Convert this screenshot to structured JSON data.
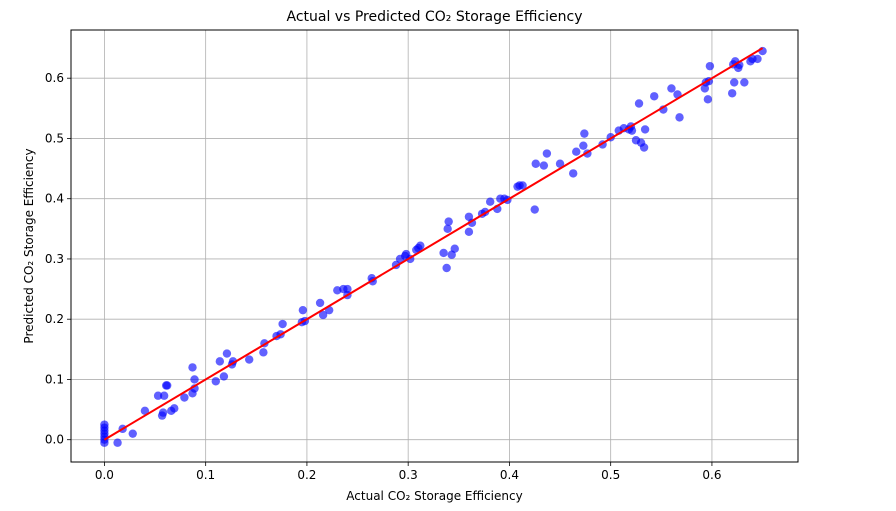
{
  "chart_data": {
    "type": "scatter",
    "title": "Actual vs Predicted CO₂ Storage Efficiency",
    "xlabel": "Actual CO₂ Storage Efficiency",
    "ylabel": "Predicted CO₂ Storage Efficiency",
    "xlim": [
      -0.033,
      0.685
    ],
    "ylim": [
      -0.037,
      0.68
    ],
    "x_ticks": [
      "0.0",
      "0.1",
      "0.2",
      "0.3",
      "0.4",
      "0.5",
      "0.6"
    ],
    "y_ticks": [
      "0.0",
      "0.1",
      "0.2",
      "0.3",
      "0.4",
      "0.5",
      "0.6"
    ],
    "grid": true,
    "point_color": "#0000ff",
    "line_color": "#ff0000",
    "reference_line": {
      "from": [
        0.0,
        0.0
      ],
      "to": [
        0.65,
        0.65
      ]
    },
    "points": [
      [
        0.0,
        0.025
      ],
      [
        0.0,
        0.02
      ],
      [
        0.0,
        0.015
      ],
      [
        0.0,
        0.01
      ],
      [
        0.0,
        0.005
      ],
      [
        0.0,
        0.0
      ],
      [
        0.0,
        -0.005
      ],
      [
        0.013,
        -0.005
      ],
      [
        0.018,
        0.018
      ],
      [
        0.028,
        0.01
      ],
      [
        0.04,
        0.048
      ],
      [
        0.053,
        0.073
      ],
      [
        0.057,
        0.04
      ],
      [
        0.058,
        0.045
      ],
      [
        0.059,
        0.073
      ],
      [
        0.061,
        0.09
      ],
      [
        0.062,
        0.09
      ],
      [
        0.066,
        0.048
      ],
      [
        0.069,
        0.052
      ],
      [
        0.079,
        0.07
      ],
      [
        0.087,
        0.12
      ],
      [
        0.087,
        0.077
      ],
      [
        0.089,
        0.085
      ],
      [
        0.089,
        0.1
      ],
      [
        0.11,
        0.097
      ],
      [
        0.114,
        0.13
      ],
      [
        0.118,
        0.105
      ],
      [
        0.121,
        0.143
      ],
      [
        0.126,
        0.125
      ],
      [
        0.127,
        0.13
      ],
      [
        0.143,
        0.133
      ],
      [
        0.157,
        0.145
      ],
      [
        0.158,
        0.16
      ],
      [
        0.17,
        0.172
      ],
      [
        0.174,
        0.175
      ],
      [
        0.176,
        0.192
      ],
      [
        0.196,
        0.215
      ],
      [
        0.195,
        0.195
      ],
      [
        0.198,
        0.197
      ],
      [
        0.213,
        0.227
      ],
      [
        0.216,
        0.207
      ],
      [
        0.222,
        0.215
      ],
      [
        0.23,
        0.248
      ],
      [
        0.236,
        0.25
      ],
      [
        0.24,
        0.24
      ],
      [
        0.24,
        0.25
      ],
      [
        0.264,
        0.268
      ],
      [
        0.265,
        0.263
      ],
      [
        0.288,
        0.29
      ],
      [
        0.292,
        0.3
      ],
      [
        0.297,
        0.305
      ],
      [
        0.298,
        0.308
      ],
      [
        0.302,
        0.3
      ],
      [
        0.308,
        0.315
      ],
      [
        0.31,
        0.318
      ],
      [
        0.312,
        0.322
      ],
      [
        0.335,
        0.31
      ],
      [
        0.338,
        0.285
      ],
      [
        0.339,
        0.35
      ],
      [
        0.34,
        0.362
      ],
      [
        0.343,
        0.307
      ],
      [
        0.346,
        0.317
      ],
      [
        0.36,
        0.37
      ],
      [
        0.36,
        0.345
      ],
      [
        0.363,
        0.36
      ],
      [
        0.373,
        0.375
      ],
      [
        0.376,
        0.378
      ],
      [
        0.381,
        0.395
      ],
      [
        0.388,
        0.383
      ],
      [
        0.391,
        0.4
      ],
      [
        0.395,
        0.4
      ],
      [
        0.398,
        0.398
      ],
      [
        0.408,
        0.42
      ],
      [
        0.41,
        0.422
      ],
      [
        0.413,
        0.422
      ],
      [
        0.425,
        0.382
      ],
      [
        0.426,
        0.458
      ],
      [
        0.434,
        0.455
      ],
      [
        0.437,
        0.475
      ],
      [
        0.45,
        0.458
      ],
      [
        0.463,
        0.442
      ],
      [
        0.466,
        0.478
      ],
      [
        0.473,
        0.488
      ],
      [
        0.474,
        0.508
      ],
      [
        0.477,
        0.475
      ],
      [
        0.492,
        0.49
      ],
      [
        0.5,
        0.502
      ],
      [
        0.508,
        0.513
      ],
      [
        0.513,
        0.517
      ],
      [
        0.518,
        0.515
      ],
      [
        0.52,
        0.52
      ],
      [
        0.521,
        0.513
      ],
      [
        0.525,
        0.497
      ],
      [
        0.528,
        0.558
      ],
      [
        0.53,
        0.493
      ],
      [
        0.533,
        0.485
      ],
      [
        0.534,
        0.515
      ],
      [
        0.543,
        0.57
      ],
      [
        0.552,
        0.548
      ],
      [
        0.56,
        0.583
      ],
      [
        0.566,
        0.573
      ],
      [
        0.568,
        0.535
      ],
      [
        0.593,
        0.583
      ],
      [
        0.594,
        0.593
      ],
      [
        0.596,
        0.565
      ],
      [
        0.597,
        0.595
      ],
      [
        0.598,
        0.62
      ],
      [
        0.62,
        0.575
      ],
      [
        0.621,
        0.623
      ],
      [
        0.622,
        0.593
      ],
      [
        0.623,
        0.628
      ],
      [
        0.626,
        0.617
      ],
      [
        0.627,
        0.622
      ],
      [
        0.632,
        0.593
      ],
      [
        0.638,
        0.628
      ],
      [
        0.64,
        0.632
      ],
      [
        0.645,
        0.632
      ],
      [
        0.65,
        0.645
      ]
    ]
  }
}
